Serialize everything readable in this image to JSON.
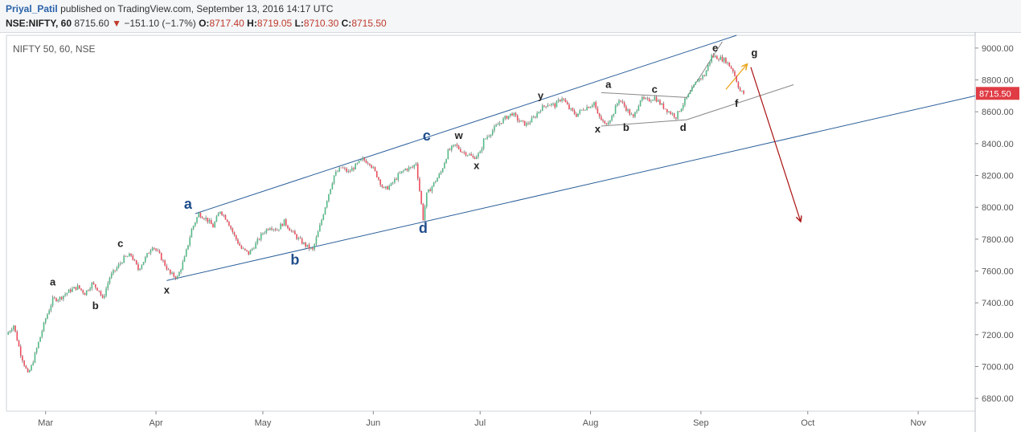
{
  "header": {
    "author": "Priyal_Patil",
    "published": "published on TradingView.com, September 13, 2016 14:17 UTC",
    "symbol": "NSE:NIFTY, 60",
    "last": "8715.60",
    "down_arrow": "▼",
    "change": "−151.10 (−1.7%)",
    "o_label": "O:",
    "o_value": "8717.40",
    "h_label": "H:",
    "h_value": "8719.05",
    "l_label": "L:",
    "l_value": "8710.30",
    "c_label": "C:",
    "c_value": "8715.50"
  },
  "chart_data": {
    "type": "candlestick",
    "title": "NIFTY 50, 60, NSE",
    "price_label": "8715.50",
    "y_ticks": [
      6800,
      7000,
      7200,
      7400,
      7600,
      7800,
      8000,
      8200,
      8400,
      8600,
      8800,
      9000
    ],
    "y_tick_labels": [
      "6800.00",
      "7000.00",
      "7200.00",
      "7400.00",
      "7600.00",
      "7800.00",
      "8000.00",
      "8200.00",
      "8400.00",
      "8600.00",
      "8800.00",
      "9000.00"
    ],
    "ylim": [
      6720,
      9080
    ],
    "x_ticks": [
      "Mar",
      "Apr",
      "May",
      "Jun",
      "Jul",
      "Aug",
      "Sep",
      "Oct",
      "Nov"
    ],
    "x_tick_days": [
      29,
      60,
      90,
      121,
      151,
      182,
      213,
      243,
      274
    ],
    "xlim": [
      18,
      290
    ],
    "colors": {
      "up": "#53b987",
      "down": "#eb4d5c",
      "wick": "#777777",
      "channel": "#2b5f9a",
      "wedge": "#888888",
      "orange_arrow": "#e8a317",
      "red_arrow": "#aa1111",
      "price_tag": "#e03c45",
      "big_label": "#1f4e8c"
    },
    "price_path": [
      [
        18,
        7200
      ],
      [
        20,
        7260
      ],
      [
        22,
        7080
      ],
      [
        24,
        6950
      ],
      [
        25,
        7000
      ],
      [
        27,
        7150
      ],
      [
        29,
        7300
      ],
      [
        31,
        7420
      ],
      [
        33,
        7430
      ],
      [
        36,
        7480
      ],
      [
        38,
        7500
      ],
      [
        40,
        7460
      ],
      [
        42,
        7520
      ],
      [
        44,
        7480
      ],
      [
        45,
        7420
      ],
      [
        47,
        7560
      ],
      [
        49,
        7620
      ],
      [
        51,
        7680
      ],
      [
        53,
        7700
      ],
      [
        55,
        7610
      ],
      [
        57,
        7680
      ],
      [
        59,
        7760
      ],
      [
        61,
        7700
      ],
      [
        63,
        7620
      ],
      [
        64,
        7580
      ],
      [
        66,
        7560
      ],
      [
        68,
        7680
      ],
      [
        70,
        7860
      ],
      [
        72,
        7960
      ],
      [
        74,
        7930
      ],
      [
        76,
        7880
      ],
      [
        78,
        7980
      ],
      [
        80,
        7920
      ],
      [
        82,
        7820
      ],
      [
        84,
        7740
      ],
      [
        86,
        7710
      ],
      [
        88,
        7770
      ],
      [
        90,
        7840
      ],
      [
        92,
        7880
      ],
      [
        94,
        7860
      ],
      [
        96,
        7910
      ],
      [
        98,
        7850
      ],
      [
        100,
        7800
      ],
      [
        102,
        7760
      ],
      [
        104,
        7730
      ],
      [
        106,
        7880
      ],
      [
        108,
        8050
      ],
      [
        110,
        8200
      ],
      [
        112,
        8250
      ],
      [
        114,
        8220
      ],
      [
        116,
        8260
      ],
      [
        118,
        8300
      ],
      [
        120,
        8280
      ],
      [
        122,
        8200
      ],
      [
        124,
        8110
      ],
      [
        126,
        8140
      ],
      [
        128,
        8200
      ],
      [
        130,
        8240
      ],
      [
        132,
        8250
      ],
      [
        133,
        8280
      ],
      [
        135,
        7930
      ],
      [
        136,
        8080
      ],
      [
        138,
        8150
      ],
      [
        140,
        8220
      ],
      [
        142,
        8350
      ],
      [
        144,
        8390
      ],
      [
        146,
        8350
      ],
      [
        148,
        8330
      ],
      [
        149,
        8310
      ],
      [
        151,
        8340
      ],
      [
        152,
        8420
      ],
      [
        154,
        8470
      ],
      [
        156,
        8520
      ],
      [
        158,
        8560
      ],
      [
        160,
        8590
      ],
      [
        162,
        8540
      ],
      [
        164,
        8520
      ],
      [
        166,
        8560
      ],
      [
        168,
        8620
      ],
      [
        170,
        8650
      ],
      [
        172,
        8640
      ],
      [
        174,
        8690
      ],
      [
        176,
        8620
      ],
      [
        178,
        8580
      ],
      [
        180,
        8620
      ],
      [
        182,
        8640
      ],
      [
        183,
        8660
      ],
      [
        184,
        8580
      ],
      [
        186,
        8520
      ],
      [
        188,
        8570
      ],
      [
        190,
        8680
      ],
      [
        192,
        8620
      ],
      [
        194,
        8560
      ],
      [
        196,
        8680
      ],
      [
        198,
        8670
      ],
      [
        200,
        8690
      ],
      [
        202,
        8640
      ],
      [
        204,
        8600
      ],
      [
        206,
        8570
      ],
      [
        208,
        8650
      ],
      [
        210,
        8720
      ],
      [
        212,
        8800
      ],
      [
        214,
        8830
      ],
      [
        216,
        8950
      ],
      [
        218,
        8940
      ],
      [
        220,
        8920
      ],
      [
        222,
        8860
      ],
      [
        224,
        8730
      ],
      [
        225,
        8715
      ]
    ],
    "channel_lines": [
      {
        "x1": 71,
        "y1": 7960,
        "x2": 223,
        "y2": 9080
      },
      {
        "x1": 63,
        "y1": 7540,
        "x2": 290,
        "y2": 8700
      }
    ],
    "wedge_lines": [
      {
        "x1": 185,
        "y1": 8720,
        "x2": 209,
        "y2": 8690
      },
      {
        "x1": 185,
        "y1": 8510,
        "x2": 209,
        "y2": 8550
      },
      {
        "x1": 209,
        "y1": 8690,
        "x2": 219,
        "y2": 9040
      },
      {
        "x1": 209,
        "y1": 8550,
        "x2": 239,
        "y2": 8770
      }
    ],
    "arrows": [
      {
        "name": "orange-arrow",
        "x1": 220,
        "y1": 8740,
        "x2": 226,
        "y2": 8900
      },
      {
        "name": "red-arrow",
        "x1": 227,
        "y1": 8880,
        "x2": 241,
        "y2": 7910
      }
    ],
    "wave_labels": [
      {
        "text": "a",
        "x": 31,
        "y": 7510,
        "big": false
      },
      {
        "text": "b",
        "x": 43,
        "y": 7360,
        "big": false
      },
      {
        "text": "c",
        "x": 50,
        "y": 7750,
        "big": false
      },
      {
        "text": "x",
        "x": 63,
        "y": 7460,
        "big": false
      },
      {
        "text": "a",
        "x": 69,
        "y": 7990,
        "big": true
      },
      {
        "text": "b",
        "x": 99,
        "y": 7640,
        "big": true
      },
      {
        "text": "c",
        "x": 136,
        "y": 8420,
        "big": true
      },
      {
        "text": "d",
        "x": 135,
        "y": 7840,
        "big": true
      },
      {
        "text": "w",
        "x": 145,
        "y": 8430,
        "big": false
      },
      {
        "text": "x",
        "x": 150,
        "y": 8240,
        "big": false
      },
      {
        "text": "y",
        "x": 168,
        "y": 8680,
        "big": false
      },
      {
        "text": "a",
        "x": 187,
        "y": 8750,
        "big": false
      },
      {
        "text": "x",
        "x": 184,
        "y": 8470,
        "big": false
      },
      {
        "text": "b",
        "x": 192,
        "y": 8480,
        "big": false
      },
      {
        "text": "c",
        "x": 200,
        "y": 8720,
        "big": false
      },
      {
        "text": "d",
        "x": 208,
        "y": 8480,
        "big": false
      },
      {
        "text": "e",
        "x": 217,
        "y": 8980,
        "big": false
      },
      {
        "text": "f",
        "x": 223,
        "y": 8630,
        "big": false
      },
      {
        "text": "g",
        "x": 228,
        "y": 8950,
        "big": false
      }
    ]
  }
}
